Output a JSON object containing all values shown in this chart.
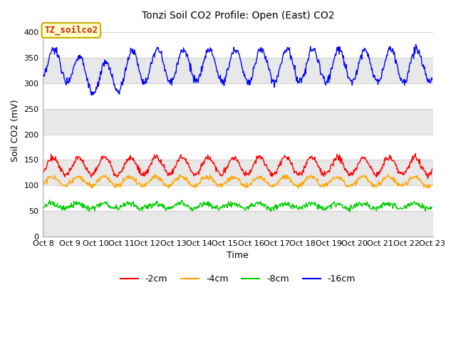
{
  "title": "Tonzi Soil CO2 Profile: Open (East) CO2",
  "xlabel": "Time",
  "ylabel": "Soil CO2 (mV)",
  "ylim": [
    0,
    415
  ],
  "yticks": [
    0,
    50,
    100,
    150,
    200,
    250,
    300,
    350,
    400
  ],
  "fig_color": "#ffffff",
  "plot_bg_light": "#ffffff",
  "plot_bg_dark": "#e8e8e8",
  "legend_label": "TZ_soilco2",
  "legend_bg": "#ffffcc",
  "legend_edge": "#ccaa00",
  "legend_text_color": "#cc2200",
  "line_colors": {
    "-2cm": "#ff0000",
    "-4cm": "#ffa500",
    "-8cm": "#00cc00",
    "-16cm": "#0000ff"
  },
  "n_points": 720,
  "x_start": 8.0,
  "x_end": 23.0,
  "xtick_labels": [
    "Oct 8",
    "Oct 9",
    "Oct 10",
    "Oct 11",
    "Oct 12",
    "Oct 13",
    "Oct 14",
    "Oct 15",
    "Oct 16",
    "Oct 17",
    "Oct 18",
    "Oct 19",
    "Oct 20",
    "Oct 21",
    "Oct 22",
    "Oct 23"
  ],
  "xtick_positions": [
    8,
    9,
    10,
    11,
    12,
    13,
    14,
    15,
    16,
    17,
    18,
    19,
    20,
    21,
    22,
    23
  ]
}
